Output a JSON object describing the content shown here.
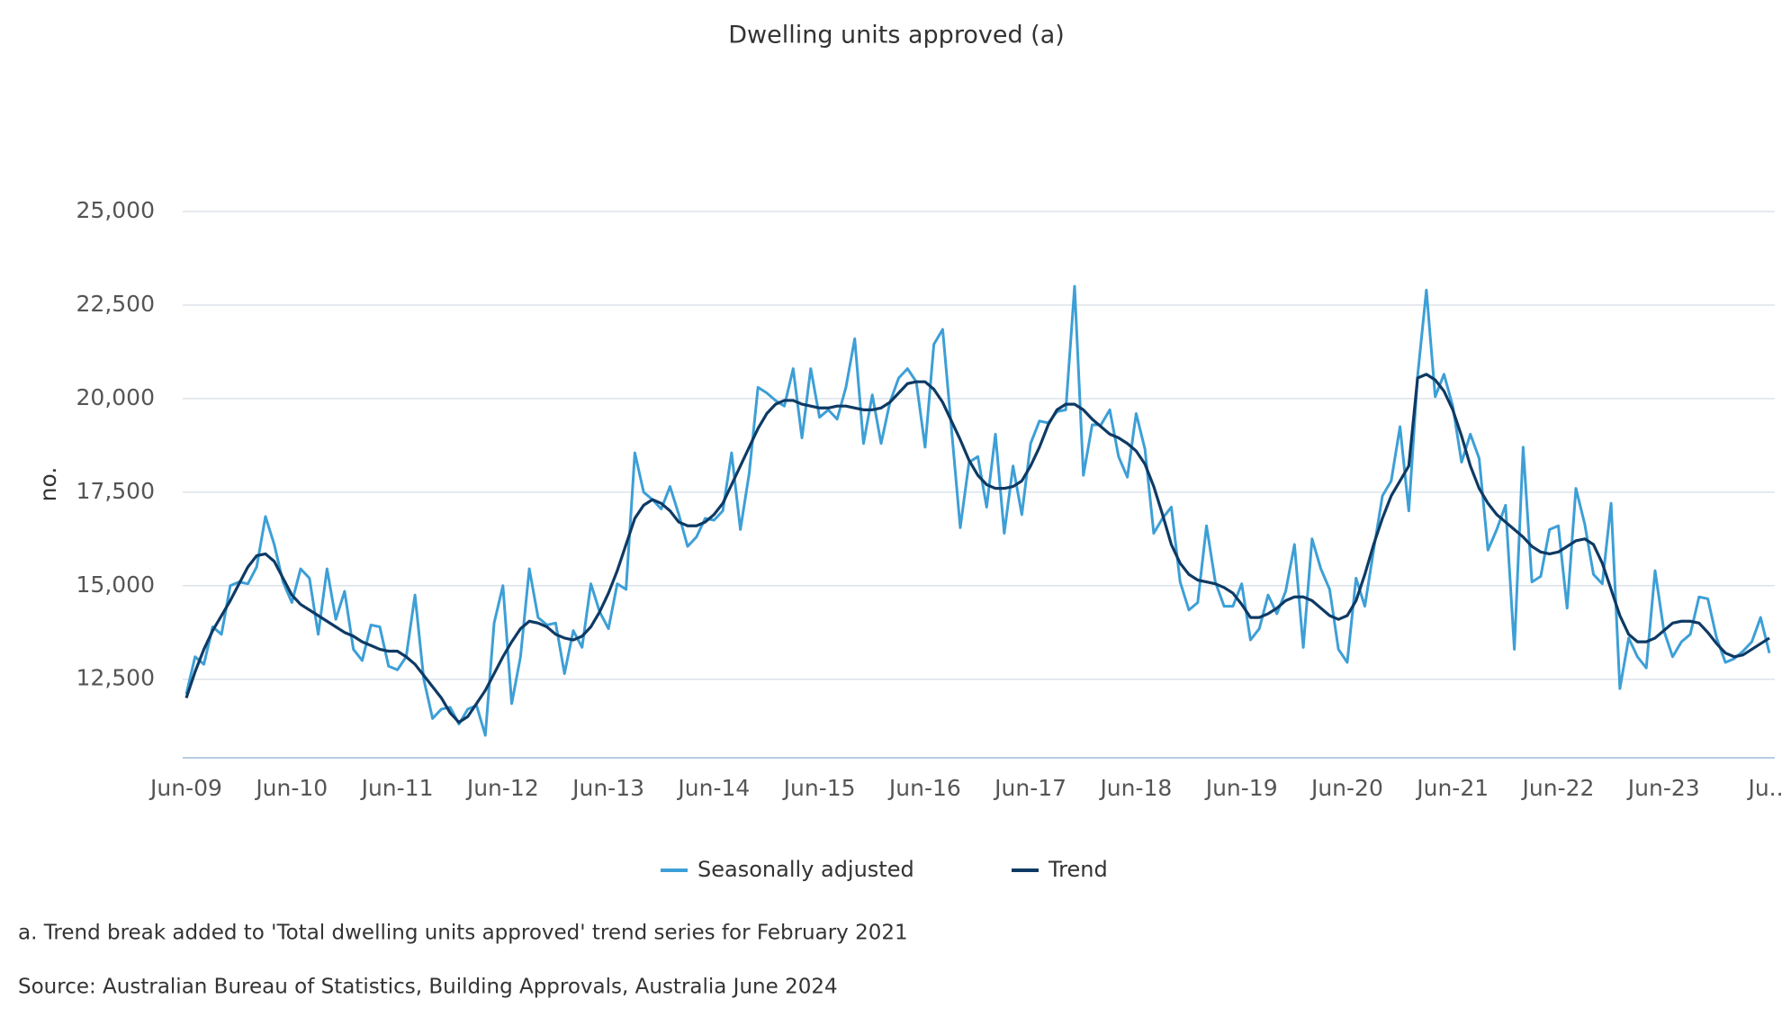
{
  "chart_data": {
    "type": "line",
    "title": "Dwelling units approved (a)",
    "y_label": "no.",
    "categories": [
      "Jun-09",
      null,
      null,
      null,
      null,
      null,
      null,
      null,
      null,
      null,
      null,
      null,
      "Jun-10",
      null,
      null,
      null,
      null,
      null,
      null,
      null,
      null,
      null,
      null,
      null,
      "Jun-11",
      null,
      null,
      null,
      null,
      null,
      null,
      null,
      null,
      null,
      null,
      null,
      "Jun-12",
      null,
      null,
      null,
      null,
      null,
      null,
      null,
      null,
      null,
      null,
      null,
      "Jun-13",
      null,
      null,
      null,
      null,
      null,
      null,
      null,
      null,
      null,
      null,
      null,
      "Jun-14",
      null,
      null,
      null,
      null,
      null,
      null,
      null,
      null,
      null,
      null,
      null,
      "Jun-15",
      null,
      null,
      null,
      null,
      null,
      null,
      null,
      null,
      null,
      null,
      null,
      "Jun-16",
      null,
      null,
      null,
      null,
      null,
      null,
      null,
      null,
      null,
      null,
      null,
      "Jun-17",
      null,
      null,
      null,
      null,
      null,
      null,
      null,
      null,
      null,
      null,
      null,
      "Jun-18",
      null,
      null,
      null,
      null,
      null,
      null,
      null,
      null,
      null,
      null,
      null,
      "Jun-19",
      null,
      null,
      null,
      null,
      null,
      null,
      null,
      null,
      null,
      null,
      null,
      "Jun-20",
      null,
      null,
      null,
      null,
      null,
      null,
      null,
      null,
      null,
      null,
      null,
      "Jun-21",
      null,
      null,
      null,
      null,
      null,
      null,
      null,
      null,
      null,
      null,
      null,
      "Jun-22",
      null,
      null,
      null,
      null,
      null,
      null,
      null,
      null,
      null,
      null,
      null,
      "Jun-23",
      null,
      null,
      null,
      null,
      null,
      null,
      null,
      null,
      null,
      null,
      null,
      "Ju..."
    ],
    "series": [
      {
        "name": "Seasonally adjusted",
        "color": "#3d9fd6",
        "values": [
          12100,
          13100,
          12900,
          13900,
          13700,
          15000,
          15100,
          15050,
          15500,
          16850,
          16100,
          15100,
          14550,
          15450,
          15200,
          13700,
          15450,
          14100,
          14850,
          13300,
          13000,
          13950,
          13900,
          12850,
          12750,
          13100,
          14750,
          12500,
          11450,
          11700,
          11750,
          11300,
          11700,
          11800,
          11000,
          14000,
          15000,
          11850,
          13100,
          15450,
          14150,
          13950,
          14000,
          12650,
          13800,
          13350,
          15050,
          14300,
          13850,
          15050,
          14900,
          18550,
          17500,
          17300,
          17050,
          17650,
          16900,
          16050,
          16300,
          16800,
          16750,
          17000,
          18550,
          16500,
          18000,
          20300,
          20150,
          19950,
          19800,
          20800,
          18950,
          20800,
          19500,
          19700,
          19450,
          20300,
          21600,
          18800,
          20100,
          18800,
          19900,
          20550,
          20800,
          20450,
          18700,
          21450,
          21850,
          19200,
          16550,
          18300,
          18450,
          17100,
          19050,
          16400,
          18200,
          16900,
          18800,
          19400,
          19350,
          19650,
          19700,
          23000,
          17950,
          19300,
          19300,
          19700,
          18450,
          17900,
          19600,
          18650,
          16400,
          16800,
          17100,
          15100,
          14350,
          14550,
          16600,
          15100,
          14450,
          14450,
          15050,
          13550,
          13850,
          14750,
          14250,
          14850,
          16100,
          13350,
          16250,
          15450,
          14900,
          13300,
          12950,
          15200,
          14450,
          15950,
          17400,
          17800,
          19250,
          17000,
          20600,
          22900,
          20050,
          20650,
          19800,
          18300,
          19050,
          18400,
          15950,
          16500,
          17150,
          13300,
          18700,
          15100,
          15250,
          16500,
          16600,
          14400,
          17600,
          16650,
          15300,
          15050,
          17200,
          12250,
          13600,
          13100,
          12800,
          15400,
          13800,
          13100,
          13500,
          13700,
          14700,
          14650,
          13600,
          12950,
          13050,
          13250,
          13500,
          14150,
          13200
        ]
      },
      {
        "name": "Trend",
        "color": "#0e3a64",
        "values": [
          12000,
          12700,
          13300,
          13800,
          14200,
          14600,
          15050,
          15500,
          15800,
          15850,
          15650,
          15200,
          14750,
          14500,
          14350,
          14200,
          14050,
          13900,
          13750,
          13650,
          13500,
          13400,
          13300,
          13250,
          13250,
          13100,
          12900,
          12600,
          12300,
          12000,
          11600,
          11350,
          11500,
          11850,
          12200,
          12650,
          13100,
          13500,
          13850,
          14050,
          14000,
          13900,
          13700,
          13600,
          13550,
          13650,
          13900,
          14300,
          14800,
          15400,
          16100,
          16800,
          17150,
          17300,
          17200,
          17000,
          16700,
          16600,
          16600,
          16700,
          16900,
          17200,
          17700,
          18200,
          18700,
          19200,
          19600,
          19850,
          19950,
          19950,
          19850,
          19800,
          19750,
          19750,
          19800,
          19800,
          19750,
          19700,
          19700,
          19750,
          19900,
          20150,
          20400,
          20450,
          20450,
          20250,
          19900,
          19400,
          18900,
          18350,
          17950,
          17700,
          17600,
          17600,
          17650,
          17800,
          18200,
          18700,
          19300,
          19700,
          19850,
          19850,
          19700,
          19450,
          19250,
          19050,
          18950,
          18800,
          18600,
          18250,
          17650,
          16900,
          16100,
          15600,
          15300,
          15150,
          15100,
          15050,
          14950,
          14800,
          14500,
          14150,
          14150,
          14250,
          14400,
          14600,
          14700,
          14700,
          14600,
          14400,
          14200,
          14100,
          14200,
          14600,
          15300,
          16100,
          16800,
          17400,
          17800,
          18200,
          20550,
          20650,
          20500,
          20200,
          19700,
          19000,
          18200,
          17600,
          17200,
          16900,
          16700,
          16500,
          16300,
          16050,
          15900,
          15850,
          15900,
          16050,
          16200,
          16250,
          16100,
          15600,
          14900,
          14200,
          13700,
          13500,
          13500,
          13600,
          13800,
          14000,
          14050,
          14050,
          14000,
          13750,
          13450,
          13200,
          13100,
          13150,
          13300,
          13450,
          13600
        ]
      }
    ],
    "ylim": [
      10400,
      25000
    ],
    "yticks": [
      {
        "value": 12500,
        "label": "12,500"
      },
      {
        "value": 15000,
        "label": "15,000"
      },
      {
        "value": 17500,
        "label": "17,500"
      },
      {
        "value": 20000,
        "label": "20,000"
      },
      {
        "value": 22500,
        "label": "22,500"
      },
      {
        "value": 25000,
        "label": "25,000"
      }
    ],
    "grid": true,
    "legend": "bottom",
    "notes": [
      "a. Trend break added to 'Total dwelling units approved' trend series for February 2021",
      "Source: Australian Bureau of Statistics, Building Approvals, Australia June 2024"
    ]
  }
}
